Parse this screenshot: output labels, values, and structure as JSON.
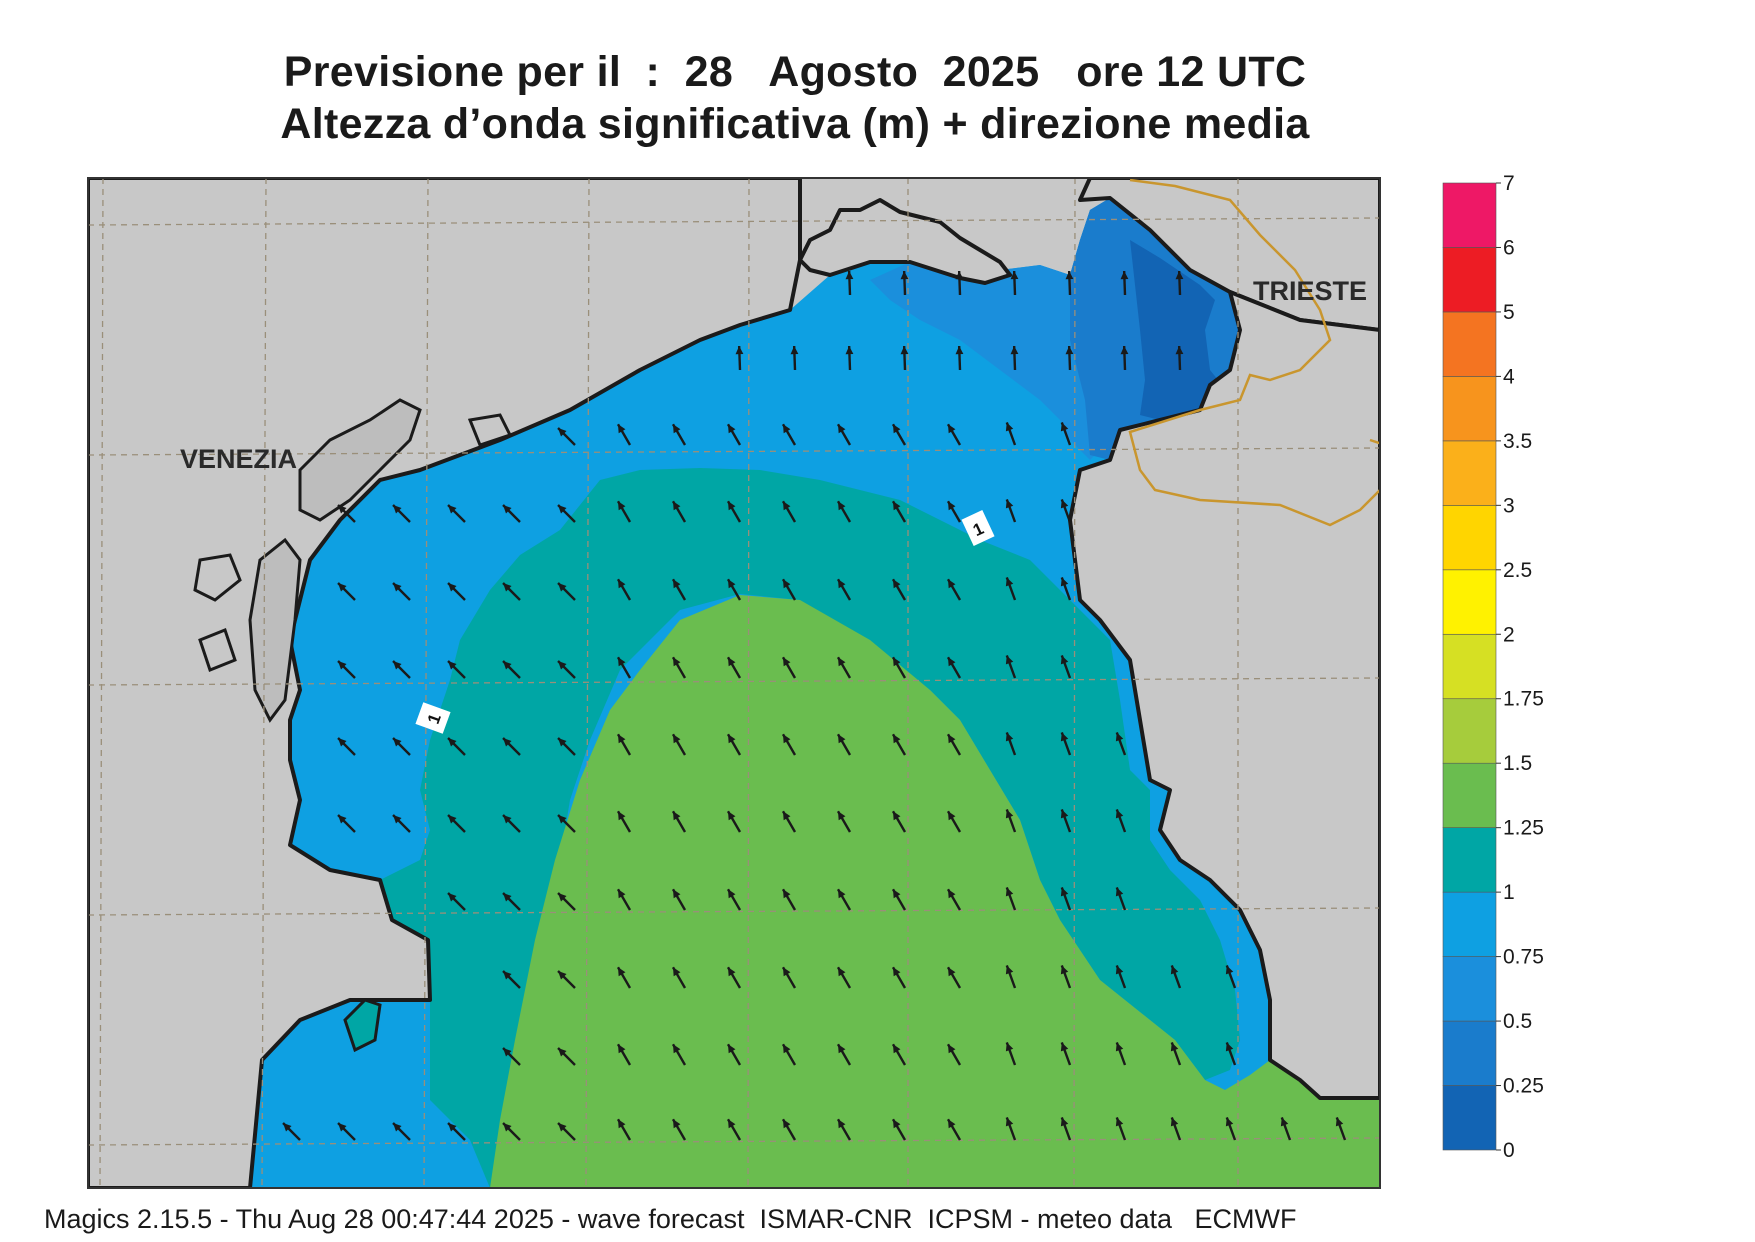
{
  "title": {
    "line1": "Previsione per il  :  28   Agosto  2025   ore 12 UTC",
    "line2": "Altezza d’onda significativa (m) + direzione media"
  },
  "map": {
    "cities": [
      {
        "name": "VENEZIA"
      },
      {
        "name": "TRIESTE"
      }
    ],
    "contour_labels": [
      "1",
      "1"
    ],
    "colors": {
      "land": "#c8c8c8",
      "coast": "#1b1b1b",
      "border": "#c9962e",
      "grid": "#9a8f7a",
      "arrow": "#1a1a1a"
    }
  },
  "colorbar": {
    "ticks": [
      "0",
      "0.25",
      "0.5",
      "0.75",
      "1",
      "1.25",
      "1.5",
      "1.75",
      "2",
      "2.5",
      "3",
      "3.5",
      "4",
      "5",
      "6",
      "7"
    ],
    "colors": [
      "#1264b4",
      "#1a7ccc",
      "#1b8fdc",
      "#0ea0e2",
      "#00a6a5",
      "#6abd4f",
      "#a6cc3c",
      "#d6e023",
      "#fff200",
      "#ffd500",
      "#fbb01a",
      "#f7941d",
      "#f47421",
      "#ed1c24",
      "#ee1866"
    ]
  },
  "footer": "Magics 2.15.5 - Thu Aug 28 00:47:44 2025 - wave forecast  ISMAR-CNR  ICPSM - meteo data   ECMWF"
}
